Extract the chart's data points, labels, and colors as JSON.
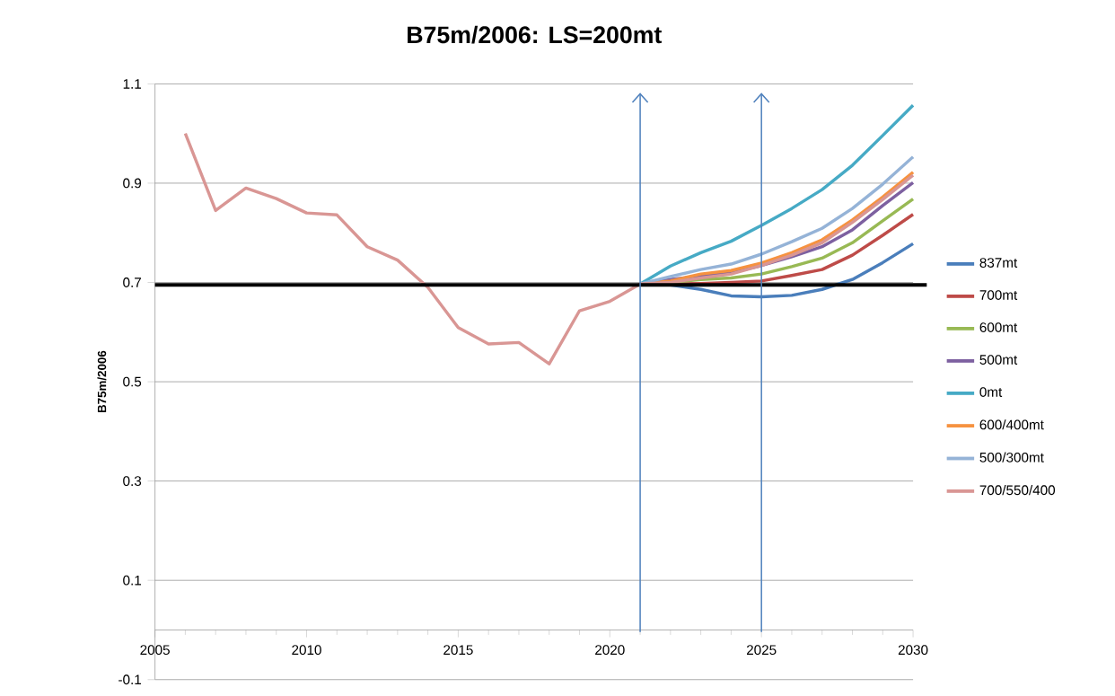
{
  "chart_data": {
    "type": "line",
    "title": "B75m/2006: LS=200mt",
    "ylabel": "B75m/2006",
    "x": [
      2006,
      2007,
      2008,
      2009,
      2010,
      2011,
      2012,
      2013,
      2014,
      2015,
      2016,
      2017,
      2018,
      2019,
      2020,
      2021,
      2022,
      2023,
      2024,
      2025,
      2026,
      2027,
      2028,
      2029,
      2030
    ],
    "xlim": [
      2005,
      2030
    ],
    "xticks": [
      2005,
      2010,
      2015,
      2020,
      2025,
      2030
    ],
    "ylim": [
      -0.1,
      1.1
    ],
    "yticks": [
      -0.1,
      0.1,
      0.3,
      0.5,
      0.7,
      0.9,
      1.1
    ],
    "grid": "y",
    "legend": "right",
    "marker": "none",
    "line_style": "solid",
    "series": [
      {
        "name": "837mt",
        "color": "#4a7ebb",
        "values": [
          null,
          null,
          null,
          null,
          null,
          null,
          null,
          null,
          null,
          null,
          null,
          null,
          null,
          null,
          null,
          0.697,
          0.695,
          0.686,
          0.673,
          0.671,
          0.674,
          0.686,
          0.706,
          0.74,
          0.778
        ]
      },
      {
        "name": "700mt",
        "color": "#be4b48",
        "values": [
          null,
          null,
          null,
          null,
          null,
          null,
          null,
          null,
          null,
          null,
          null,
          null,
          null,
          null,
          null,
          0.697,
          0.697,
          0.698,
          0.7,
          0.703,
          0.714,
          0.726,
          0.755,
          0.795,
          0.837
        ]
      },
      {
        "name": "600mt",
        "color": "#98b954",
        "values": [
          null,
          null,
          null,
          null,
          null,
          null,
          null,
          null,
          null,
          null,
          null,
          null,
          null,
          null,
          null,
          0.697,
          0.7,
          0.706,
          0.709,
          0.717,
          0.732,
          0.749,
          0.78,
          0.824,
          0.868
        ]
      },
      {
        "name": "500mt",
        "color": "#7d60a0",
        "values": [
          null,
          null,
          null,
          null,
          null,
          null,
          null,
          null,
          null,
          null,
          null,
          null,
          null,
          null,
          null,
          0.697,
          0.706,
          0.713,
          0.72,
          0.734,
          0.752,
          0.772,
          0.806,
          0.855,
          0.901
        ]
      },
      {
        "name": "0mt",
        "color": "#46aac5",
        "values": [
          null,
          null,
          null,
          null,
          null,
          null,
          null,
          null,
          null,
          null,
          null,
          null,
          null,
          null,
          null,
          0.697,
          0.733,
          0.76,
          0.783,
          0.815,
          0.849,
          0.887,
          0.936,
          0.996,
          1.057
        ]
      },
      {
        "name": "600/400mt",
        "color": "#f69240",
        "values": [
          null,
          null,
          null,
          null,
          null,
          null,
          null,
          null,
          null,
          null,
          null,
          null,
          null,
          null,
          null,
          0.697,
          0.703,
          0.717,
          0.724,
          0.739,
          0.76,
          0.786,
          0.826,
          0.872,
          0.922
        ]
      },
      {
        "name": "500/300mt",
        "color": "#95b3d7",
        "values": [
          null,
          null,
          null,
          null,
          null,
          null,
          null,
          null,
          null,
          null,
          null,
          null,
          null,
          null,
          null,
          0.697,
          0.712,
          0.726,
          0.737,
          0.757,
          0.782,
          0.809,
          0.849,
          0.898,
          0.953
        ]
      },
      {
        "name": "700/550/400",
        "color": "#d99694",
        "values": [
          1.0,
          0.845,
          0.89,
          0.869,
          0.84,
          0.836,
          0.772,
          0.745,
          0.69,
          0.609,
          0.576,
          0.579,
          0.536,
          0.643,
          0.662,
          0.697,
          0.7,
          0.709,
          0.717,
          0.734,
          0.755,
          0.78,
          0.821,
          0.867,
          0.916
        ]
      }
    ],
    "ref_lines": [
      {
        "axis": "y",
        "value": 0.695,
        "color": "#000000",
        "line_style": "solid"
      },
      {
        "axis": "x",
        "value": 2021,
        "color": "#4f81bd",
        "line_style": "solid"
      },
      {
        "axis": "x",
        "value": 2025,
        "color": "#4f81bd",
        "line_style": "solid"
      }
    ]
  }
}
